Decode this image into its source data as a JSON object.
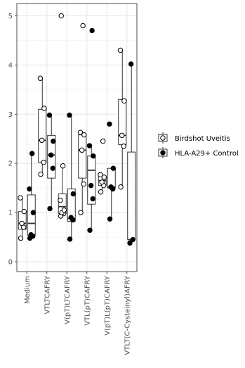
{
  "chart_data": {
    "type": "boxplot",
    "title": "",
    "xlabel": "",
    "ylabel": "",
    "ylim": [
      -0.2,
      5.25
    ],
    "yticks": [
      0,
      1,
      2,
      3,
      4,
      5
    ],
    "grid": true,
    "legend_position": "right",
    "categories": [
      "Medium",
      "VTLTCAFRY",
      "V(pT)LTCAFRY",
      "VTL(pT)CAFRY",
      "V(pT)L(pT)CAFRY",
      "VTLT(C-Cysteinyl)AFRY"
    ],
    "series": [
      {
        "name": "Birdshot Uveitis",
        "marker": "open-circle",
        "boxes": [
          {
            "min": 0.48,
            "q1": 0.66,
            "median": 0.78,
            "q3": 1.02,
            "max": 1.3
          },
          {
            "min": 1.78,
            "q1": 2.02,
            "median": 2.47,
            "q3": 3.1,
            "max": 3.73
          },
          {
            "min": 0.93,
            "q1": 0.98,
            "median": 1.12,
            "q3": 1.38,
            "max": 1.95
          },
          {
            "min": 1.0,
            "q1": 1.7,
            "median": 2.27,
            "q3": 2.58,
            "max": 2.63
          },
          {
            "min": 1.42,
            "q1": 1.55,
            "median": 1.65,
            "q3": 1.73,
            "max": 1.77
          },
          {
            "min": 1.52,
            "q1": 2.38,
            "median": 2.57,
            "q3": 3.3,
            "max": 4.3
          }
        ],
        "points": [
          [
            0.48,
            0.7,
            0.78,
            1.02,
            1.3
          ],
          [
            1.78,
            2.02,
            2.47,
            3.12,
            3.73
          ],
          [
            0.93,
            0.98,
            1.0,
            1.05,
            1.25,
            1.95,
            5.0
          ],
          [
            1.0,
            1.58,
            2.27,
            2.58,
            2.63,
            4.8
          ],
          [
            1.42,
            1.55,
            1.62,
            1.72,
            1.77,
            2.45
          ],
          [
            1.52,
            2.35,
            2.57,
            3.27,
            4.3
          ]
        ]
      },
      {
        "name": "HLA-A29+ Control",
        "marker": "filled-circle",
        "boxes": [
          {
            "min": 0.48,
            "q1": 0.54,
            "median": 0.78,
            "q3": 1.36,
            "max": 2.2
          },
          {
            "min": 1.08,
            "q1": 1.7,
            "median": 2.17,
            "q3": 2.57,
            "max": 2.98
          },
          {
            "min": 0.46,
            "q1": 0.82,
            "median": 0.88,
            "q3": 1.48,
            "max": 2.98
          },
          {
            "min": 0.64,
            "q1": 1.17,
            "median": 1.86,
            "q3": 2.15,
            "max": 2.36
          },
          {
            "min": 0.87,
            "q1": 1.5,
            "median": 1.52,
            "q3": 1.9,
            "max": 1.9
          },
          {
            "min": 0.38,
            "q1": 0.45,
            "median": 0.45,
            "q3": 2.23,
            "max": 4.02
          }
        ],
        "points": [
          [
            0.48,
            0.52,
            0.55,
            1.0,
            1.48,
            2.2
          ],
          [
            1.08,
            1.9,
            2.17,
            2.45,
            2.98
          ],
          [
            0.46,
            0.85,
            0.9,
            1.38,
            2.98
          ],
          [
            0.64,
            1.28,
            1.55,
            2.15,
            2.36,
            4.7
          ],
          [
            0.87,
            1.48,
            1.52,
            1.9,
            2.8
          ],
          [
            0.38,
            0.45,
            4.02
          ]
        ]
      }
    ]
  }
}
